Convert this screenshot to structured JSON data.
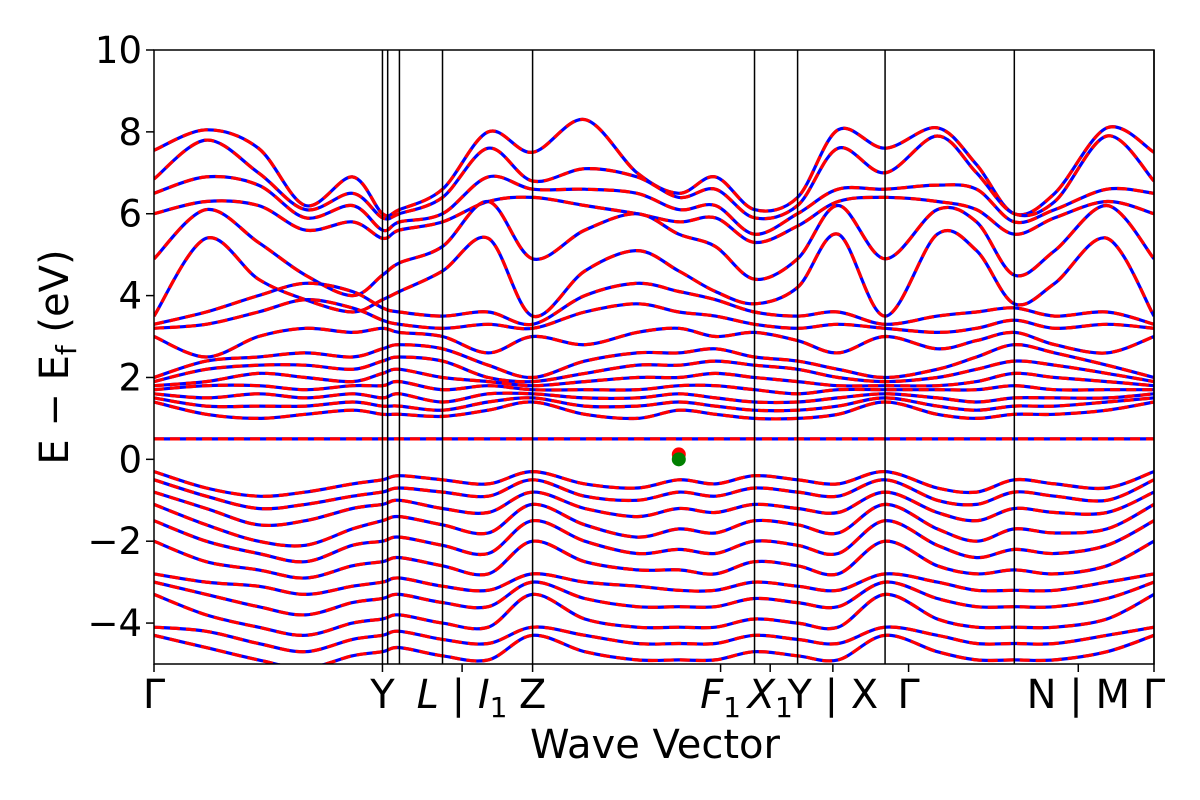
{
  "chart_data": {
    "type": "line",
    "xlabel": "Wave Vector",
    "ylabel_main": "E − E",
    "ylabel_sub": "f",
    "ylabel_unit": " (eV)",
    "ylim": [
      -5,
      10
    ],
    "yticks": [
      10,
      8,
      6,
      4,
      2,
      0,
      -2,
      -4
    ],
    "ytick_labels": [
      "10",
      "8",
      "6",
      "4",
      "2",
      "0",
      "−2",
      "−4"
    ],
    "xlim": [
      0,
      1000
    ],
    "high_symmetry_points": [
      {
        "label": "Γ",
        "x": 0
      },
      {
        "label": "Y",
        "x": 87.5
      },
      {
        "label": "",
        "x": 90
      },
      {
        "label": "L | I",
        "x": 95.5,
        "sub": "1"
      },
      {
        "label": "Z",
        "x": 145
      },
      {
        "label": "",
        "x": 289
      },
      {
        "label": "F",
        "x": 580,
        "sub": "1"
      },
      {
        "label": "X",
        "x": 605,
        "sub": "1"
      },
      {
        "label": "Y | X",
        "x": 661
      },
      {
        "label": "Γ",
        "x": 700
      },
      {
        "label": "N | M",
        "x": 865
      },
      {
        "label": "Γ",
        "x": 1000
      }
    ],
    "label_positions": [
      {
        "text": "Γ",
        "x": 0
      },
      {
        "text": "Y",
        "x": 87.5
      },
      {
        "text": "L | I",
        "sub": "1",
        "x": 118
      },
      {
        "text": "Z",
        "x": 145
      },
      {
        "text": "F",
        "sub": "1",
        "x": 217
      },
      {
        "text": "X",
        "sub": "1",
        "x": 236
      },
      {
        "text": "Y | X",
        "x": 260
      },
      {
        "text": "Γ",
        "x": 289
      },
      {
        "text": "N | M",
        "x": 354
      },
      {
        "text": "Γ",
        "x": 383
      }
    ],
    "vlines": [
      87.5,
      89.5,
      94,
      110.5,
      145,
      230,
      246.5,
      280,
      329.5,
      383
    ],
    "series": [
      {
        "color": "#0000ff",
        "style": "solid"
      },
      {
        "color": "#ff0000",
        "style": "dashed"
      }
    ],
    "markers": [
      {
        "x": 201,
        "y": 0.12,
        "color": "#ff0000"
      },
      {
        "x": 201,
        "y": 0.0,
        "color": "#008000"
      }
    ],
    "bands": {
      "flat_band_energy": 0.5,
      "anchor_x": [
        0,
        20,
        40,
        58,
        76,
        87.5,
        94,
        110.5,
        128,
        145,
        165,
        185,
        201,
        215,
        230,
        246.5,
        262,
        280,
        300,
        315,
        329.5,
        345,
        365,
        383
      ],
      "energies": [
        [
          7.55,
          8.05,
          7.6,
          6.2,
          6.9,
          6.0,
          6.1,
          6.6,
          8.0,
          7.5,
          8.3,
          7.0,
          6.5,
          6.9,
          6.1,
          6.4,
          8.05,
          7.6,
          8.1,
          7.2,
          6.0,
          6.5,
          8.1,
          7.5
        ],
        [
          6.85,
          7.8,
          7.0,
          6.1,
          6.5,
          5.9,
          6.0,
          6.4,
          7.6,
          6.8,
          7.1,
          6.9,
          6.4,
          6.6,
          5.9,
          6.2,
          7.6,
          7.0,
          7.9,
          7.0,
          6.0,
          6.3,
          7.9,
          6.8
        ],
        [
          6.5,
          6.9,
          6.7,
          5.9,
          6.2,
          5.6,
          5.8,
          6.0,
          6.9,
          6.6,
          6.6,
          6.5,
          6.1,
          6.2,
          5.5,
          6.0,
          6.6,
          6.6,
          6.7,
          6.6,
          5.8,
          6.1,
          6.6,
          6.5
        ],
        [
          6.0,
          6.3,
          6.2,
          5.6,
          5.8,
          5.4,
          5.6,
          5.8,
          6.3,
          6.4,
          6.2,
          6.0,
          5.8,
          5.9,
          5.3,
          5.7,
          6.3,
          6.4,
          6.3,
          6.1,
          5.5,
          5.9,
          6.3,
          6.0
        ],
        [
          4.9,
          6.1,
          5.3,
          4.5,
          4.0,
          4.5,
          4.8,
          5.2,
          6.3,
          4.9,
          5.6,
          6.0,
          5.5,
          5.2,
          4.4,
          4.9,
          6.2,
          4.9,
          6.1,
          5.8,
          4.5,
          5.1,
          6.2,
          4.9
        ],
        [
          3.5,
          5.4,
          4.4,
          3.9,
          3.6,
          3.9,
          4.1,
          4.6,
          5.4,
          3.5,
          4.6,
          5.1,
          4.6,
          4.1,
          3.8,
          4.2,
          5.5,
          3.5,
          5.5,
          5.1,
          3.8,
          4.3,
          5.4,
          3.5
        ],
        [
          3.3,
          3.6,
          4.0,
          4.3,
          4.1,
          3.7,
          3.6,
          3.5,
          3.6,
          3.3,
          4.0,
          4.3,
          4.1,
          3.9,
          3.6,
          3.5,
          3.6,
          3.3,
          3.5,
          3.6,
          3.7,
          3.5,
          3.6,
          3.3
        ],
        [
          3.2,
          3.3,
          3.6,
          3.9,
          3.7,
          3.4,
          3.3,
          3.2,
          3.3,
          3.2,
          3.6,
          3.8,
          3.6,
          3.5,
          3.3,
          3.2,
          3.3,
          3.2,
          3.1,
          3.2,
          3.4,
          3.2,
          3.3,
          3.2
        ],
        [
          3.0,
          2.5,
          3.0,
          3.2,
          3.1,
          3.2,
          3.1,
          3.0,
          2.6,
          3.0,
          2.8,
          3.1,
          3.2,
          3.0,
          3.1,
          2.9,
          2.6,
          3.0,
          2.7,
          2.9,
          3.1,
          2.8,
          2.6,
          3.0
        ],
        [
          2.0,
          2.4,
          2.5,
          2.6,
          2.5,
          2.7,
          2.8,
          2.7,
          2.3,
          2.0,
          2.4,
          2.6,
          2.6,
          2.7,
          2.5,
          2.4,
          2.2,
          2.0,
          2.2,
          2.5,
          2.8,
          2.6,
          2.3,
          2.0
        ],
        [
          1.9,
          2.2,
          2.3,
          2.3,
          2.2,
          2.4,
          2.5,
          2.4,
          2.0,
          1.9,
          2.1,
          2.3,
          2.3,
          2.4,
          2.3,
          2.2,
          2.0,
          1.9,
          2.0,
          2.2,
          2.4,
          2.3,
          2.1,
          1.9
        ],
        [
          1.8,
          1.9,
          2.1,
          2.0,
          1.9,
          2.1,
          2.2,
          2.0,
          1.9,
          1.8,
          1.9,
          2.0,
          2.0,
          2.1,
          2.0,
          1.9,
          1.8,
          1.8,
          1.8,
          1.9,
          2.1,
          2.0,
          1.9,
          1.8
        ],
        [
          1.7,
          1.8,
          1.8,
          1.7,
          1.8,
          1.8,
          1.9,
          1.7,
          1.8,
          1.7,
          1.7,
          1.7,
          1.8,
          1.8,
          1.7,
          1.6,
          1.7,
          1.7,
          1.7,
          1.7,
          1.8,
          1.7,
          1.7,
          1.7
        ],
        [
          1.6,
          1.5,
          1.6,
          1.5,
          1.6,
          1.5,
          1.6,
          1.4,
          1.6,
          1.6,
          1.5,
          1.5,
          1.6,
          1.5,
          1.4,
          1.4,
          1.5,
          1.6,
          1.5,
          1.4,
          1.5,
          1.5,
          1.5,
          1.6
        ],
        [
          1.5,
          1.3,
          1.3,
          1.3,
          1.4,
          1.3,
          1.3,
          1.2,
          1.4,
          1.5,
          1.3,
          1.3,
          1.4,
          1.3,
          1.2,
          1.2,
          1.3,
          1.5,
          1.3,
          1.2,
          1.3,
          1.3,
          1.4,
          1.5
        ],
        [
          1.4,
          1.1,
          1.0,
          1.1,
          1.2,
          1.1,
          1.1,
          1.05,
          1.2,
          1.4,
          1.1,
          1.0,
          1.2,
          1.1,
          1.0,
          1.0,
          1.1,
          1.4,
          1.1,
          1.0,
          1.1,
          1.1,
          1.2,
          1.4
        ],
        [
          -0.3,
          -0.7,
          -0.9,
          -0.8,
          -0.6,
          -0.5,
          -0.4,
          -0.5,
          -0.6,
          -0.3,
          -0.6,
          -0.7,
          -0.5,
          -0.6,
          -0.4,
          -0.5,
          -0.6,
          -0.3,
          -0.7,
          -0.8,
          -0.5,
          -0.6,
          -0.7,
          -0.3
        ],
        [
          -0.5,
          -0.9,
          -1.2,
          -1.1,
          -0.9,
          -0.8,
          -0.7,
          -0.8,
          -0.9,
          -0.5,
          -0.9,
          -1.0,
          -0.8,
          -0.9,
          -0.7,
          -0.8,
          -0.9,
          -0.5,
          -1.0,
          -1.1,
          -0.8,
          -0.9,
          -1.0,
          -0.5
        ],
        [
          -0.8,
          -1.2,
          -1.6,
          -1.5,
          -1.2,
          -1.1,
          -1.0,
          -1.2,
          -1.3,
          -0.8,
          -1.2,
          -1.4,
          -1.2,
          -1.3,
          -1.1,
          -1.2,
          -1.3,
          -0.8,
          -1.3,
          -1.5,
          -1.2,
          -1.3,
          -1.3,
          -0.8
        ],
        [
          -1.1,
          -1.6,
          -2.0,
          -2.1,
          -1.7,
          -1.5,
          -1.4,
          -1.6,
          -1.8,
          -1.1,
          -1.6,
          -1.9,
          -1.7,
          -1.8,
          -1.5,
          -1.6,
          -1.8,
          -1.1,
          -1.7,
          -2.0,
          -1.7,
          -1.8,
          -1.7,
          -1.1
        ],
        [
          -1.5,
          -2.0,
          -2.3,
          -2.5,
          -2.1,
          -2.0,
          -1.9,
          -2.1,
          -2.3,
          -1.5,
          -2.0,
          -2.3,
          -2.2,
          -2.3,
          -2.0,
          -2.1,
          -2.3,
          -1.5,
          -2.1,
          -2.4,
          -2.2,
          -2.3,
          -2.1,
          -1.5
        ],
        [
          -2.0,
          -2.5,
          -2.7,
          -2.9,
          -2.6,
          -2.5,
          -2.4,
          -2.6,
          -2.8,
          -2.0,
          -2.5,
          -2.7,
          -2.7,
          -2.8,
          -2.5,
          -2.6,
          -2.8,
          -2.0,
          -2.6,
          -2.8,
          -2.7,
          -2.8,
          -2.6,
          -2.0
        ],
        [
          -2.8,
          -3.0,
          -3.1,
          -3.3,
          -3.1,
          -3.0,
          -2.9,
          -3.1,
          -3.2,
          -2.8,
          -3.0,
          -3.1,
          -3.2,
          -3.2,
          -3.0,
          -3.1,
          -3.2,
          -2.8,
          -3.0,
          -3.2,
          -3.2,
          -3.2,
          -3.0,
          -2.8
        ],
        [
          -3.0,
          -3.3,
          -3.6,
          -3.8,
          -3.5,
          -3.4,
          -3.3,
          -3.5,
          -3.6,
          -3.0,
          -3.4,
          -3.6,
          -3.6,
          -3.6,
          -3.4,
          -3.5,
          -3.6,
          -3.0,
          -3.4,
          -3.6,
          -3.6,
          -3.6,
          -3.4,
          -3.0
        ],
        [
          -3.3,
          -3.8,
          -4.1,
          -4.3,
          -4.0,
          -3.9,
          -3.8,
          -4.0,
          -4.1,
          -3.3,
          -3.9,
          -4.1,
          -4.1,
          -4.1,
          -3.9,
          -4.0,
          -4.1,
          -3.3,
          -3.9,
          -4.1,
          -4.1,
          -4.1,
          -3.9,
          -3.3
        ],
        [
          -4.1,
          -4.2,
          -4.5,
          -4.7,
          -4.4,
          -4.3,
          -4.2,
          -4.4,
          -4.5,
          -4.1,
          -4.3,
          -4.5,
          -4.5,
          -4.5,
          -4.3,
          -4.4,
          -4.5,
          -4.1,
          -4.3,
          -4.5,
          -4.5,
          -4.5,
          -4.3,
          -4.1
        ],
        [
          -4.3,
          -4.6,
          -4.9,
          -5.1,
          -4.8,
          -4.7,
          -4.6,
          -4.8,
          -4.9,
          -4.3,
          -4.7,
          -4.9,
          -4.9,
          -4.9,
          -4.7,
          -4.8,
          -4.9,
          -4.3,
          -4.7,
          -4.9,
          -4.9,
          -4.9,
          -4.7,
          -4.3
        ]
      ]
    }
  }
}
